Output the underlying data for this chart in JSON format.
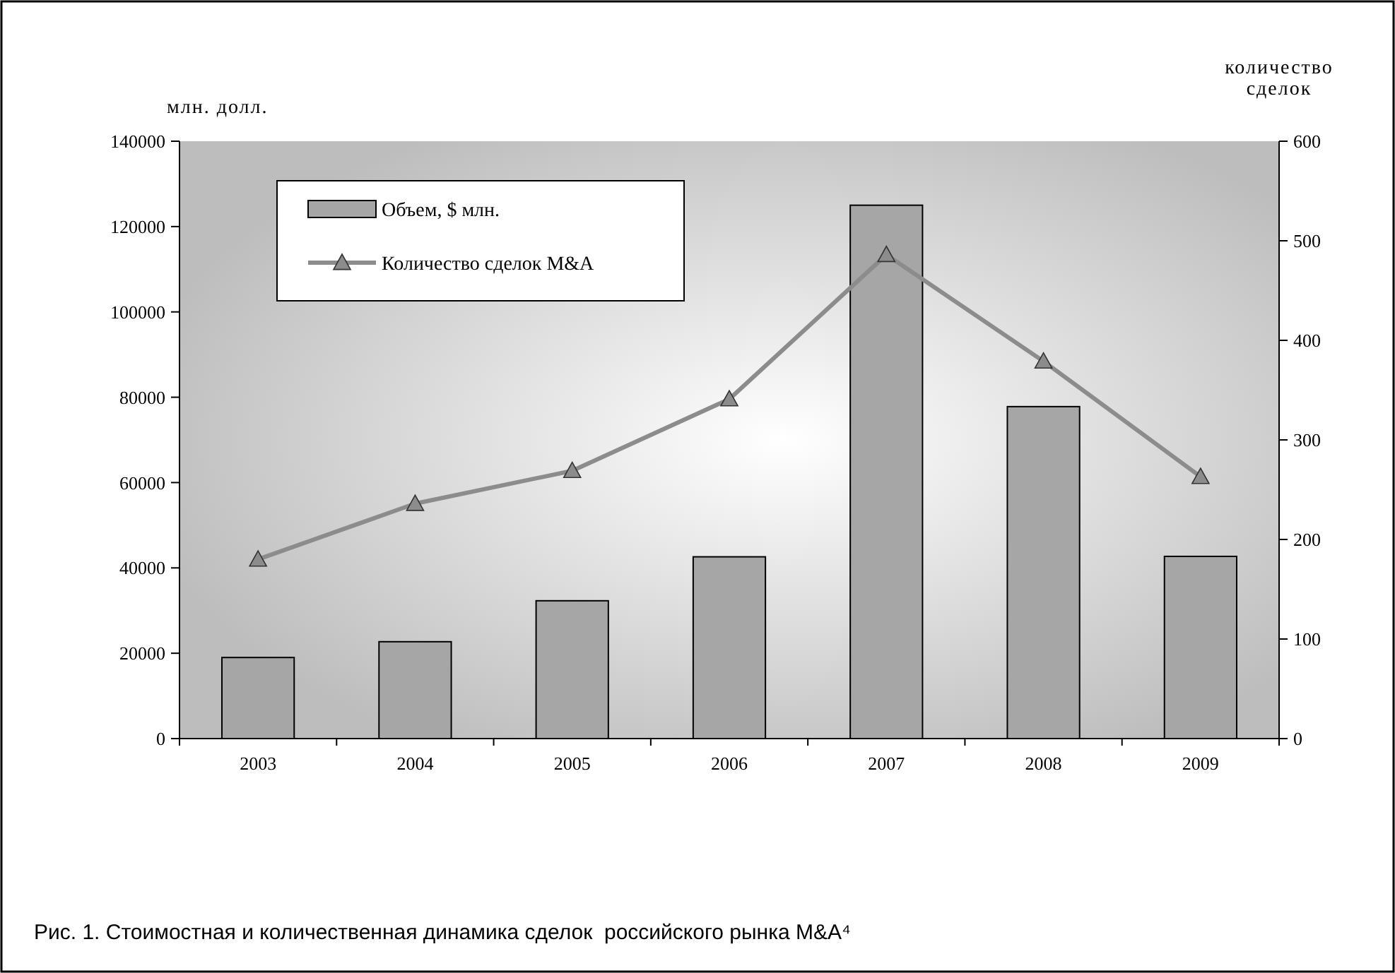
{
  "chart_data": {
    "type": "bar",
    "ylabel": "млн. долл.",
    "y2label": "количество сделок",
    "categories": [
      "2003",
      "2004",
      "2005",
      "2006",
      "2007",
      "2008",
      "2009"
    ],
    "series": [
      {
        "name": "Объем, $ млн.",
        "color": "#a6a6a6",
        "values": [
          19000,
          22700,
          32300,
          42600,
          125000,
          77800,
          42700
        ]
      },
      {
        "name": "Количество сделок M&A",
        "type": "line",
        "axis": "y2",
        "color": "#8c8c8c",
        "marker": "triangle",
        "values": [
          180,
          236,
          269,
          341,
          486,
          379,
          263
        ]
      }
    ],
    "ylim": [
      0,
      140000
    ],
    "yticks": [
      0,
      20000,
      40000,
      60000,
      80000,
      100000,
      120000,
      140000
    ],
    "y2lim": [
      0,
      600
    ],
    "y2ticks": [
      0,
      100,
      200,
      300,
      400,
      500,
      600
    ],
    "legend": "top left",
    "grid": false,
    "annotations": [
      "Рис. 1. Стоимостная и количественная динамика сделок  российского рынка M&A⁴"
    ]
  }
}
